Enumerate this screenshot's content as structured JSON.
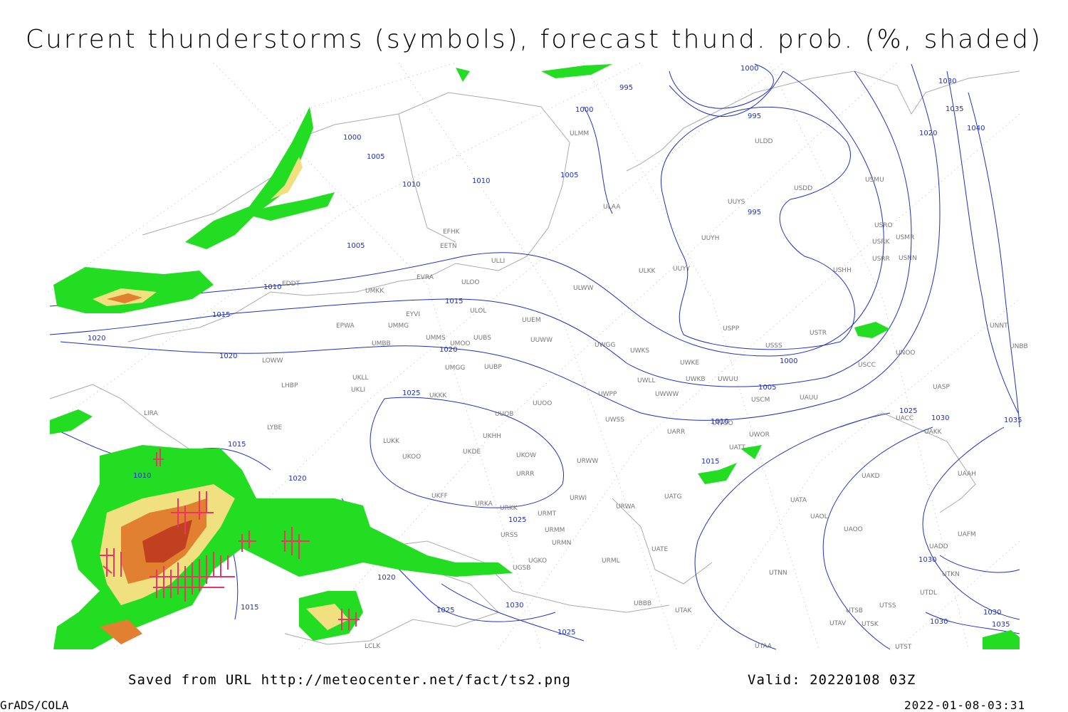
{
  "header": {
    "title": "Current thunderstorms (symbols), forecast thund. prob. (%, shaded)"
  },
  "footer": {
    "source": "Saved from URL http://meteocenter.net/fact/ts2.png",
    "valid": "Valid: 20220108 03Z",
    "software": "GrADS/COLA",
    "timestamp": "2022-01-08-03:31"
  },
  "stations": [
    "ULMM",
    "ULDD",
    "USDD",
    "USMU",
    "UUYS",
    "ULAA",
    "USRO",
    "USRK",
    "USMR",
    "UUYH",
    "EFHK",
    "EETN",
    "ULLI",
    "USRR",
    "USNN",
    "USHH",
    "ULKK",
    "UUYY",
    "EVRA",
    "ULOO",
    "UMKK",
    "ULWW",
    "EDDT",
    "ULOL",
    "EYVI",
    "UUEM",
    "EPWA",
    "UMMG",
    "USPP",
    "USTR",
    "UNNT",
    "UMMS",
    "UUBS",
    "UUWW",
    "UMOO",
    "UMBB",
    "USSS",
    "UWGG",
    "UWKS",
    "UNOO",
    "UNBB",
    "LOWW",
    "UWKE",
    "USCC",
    "UUBP",
    "UKLL",
    "UMGG",
    "UWKB",
    "UWUU",
    "UWLL",
    "LHBP",
    "UKLI",
    "UWWW",
    "USCM",
    "UASP",
    "UWPP",
    "UKKK",
    "UAUU",
    "UUOO",
    "LIRA",
    "UUOB",
    "UWSS",
    "UWOO",
    "UACC",
    "LYBE",
    "UARR",
    "UWOR",
    "UAKK",
    "LUKK",
    "UKHH",
    "UKOO",
    "UKDE",
    "UKOW",
    "URWW",
    "UATT",
    "UAKD",
    "UAAH",
    "URRR",
    "UKFF",
    "URWI",
    "UATG",
    "UATA",
    "URKA",
    "URKK",
    "URWA",
    "UAOL",
    "URMT",
    "UAOO",
    "URSS",
    "URMM",
    "UATE",
    "UAFM",
    "URMN",
    "UADD",
    "UGSB",
    "UGKO",
    "URML",
    "UTNN",
    "UTKN",
    "UTDL",
    "UBBB",
    "UTAK",
    "UTSB",
    "UTSS",
    "UTAV",
    "UTSK",
    "UTAA",
    "UTST",
    "LCLK"
  ],
  "isobar_labels": [
    "995",
    "1000",
    "995",
    "1000",
    "1000",
    "1005",
    "1010",
    "1010",
    "1005",
    "995",
    "1005",
    "1010",
    "1015",
    "1015",
    "1020",
    "1020",
    "1020",
    "1000",
    "1005",
    "1025",
    "1030",
    "1035",
    "1040",
    "1020",
    "1025",
    "1030",
    "1035",
    "1010",
    "1015",
    "1010",
    "1020",
    "1015",
    "1025",
    "1020",
    "1015",
    "1025",
    "1030",
    "1025",
    "1030",
    "1030",
    "1035",
    "1030"
  ]
}
